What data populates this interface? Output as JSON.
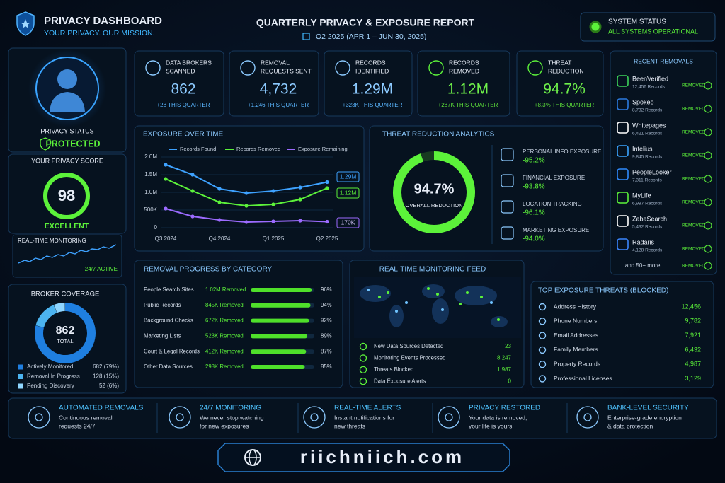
{
  "header": {
    "title": "PRIVACY DASHBOARD",
    "tagline": "YOUR PRIVACY. OUR MISSION.",
    "report_title": "QUARTERLY PRIVACY & EXPOSURE REPORT",
    "period": "Q2 2025 (APR 1 – JUN 30, 2025)"
  },
  "system_status": {
    "label": "SYSTEM STATUS",
    "status": "ALL SYSTEMS OPERATIONAL"
  },
  "profile": {
    "label": "PRIVACY STATUS",
    "status": "PROTECTED"
  },
  "privacy_score": {
    "title": "YOUR PRIVACY SCORE",
    "score": 98,
    "rating": "EXCELLENT"
  },
  "monitoring": {
    "title": "REAL-TIME MONITORING",
    "status": "24/7 ACTIVE"
  },
  "broker_coverage": {
    "type": "pie",
    "title": "BROKER COVERAGE",
    "total": 862,
    "total_label": "TOTAL",
    "categories": [
      "Actively Monitored",
      "Removal In Progress",
      "Pending Discovery"
    ],
    "values": [
      682,
      128,
      52
    ],
    "value_labels": [
      "682 (79%)",
      "128 (15%)",
      "52 (6%)"
    ],
    "colors": [
      "#1f7fe0",
      "#4cb4f0",
      "#8fd6ff"
    ]
  },
  "stats": [
    {
      "label": [
        "DATA BROKERS",
        "SCANNED"
      ],
      "value": "862",
      "change": "+28 THIS QUARTER"
    },
    {
      "label": [
        "REMOVAL",
        "REQUESTS SENT"
      ],
      "value": "4,732",
      "change": "+1,246 THIS QUARTER"
    },
    {
      "label": [
        "RECORDS",
        "IDENTIFIED"
      ],
      "value": "1.29M",
      "change": "+323K THIS QUARTER"
    },
    {
      "label": [
        "RECORDS",
        "REMOVED"
      ],
      "value": "1.12M",
      "change": "+287K THIS QUARTER"
    },
    {
      "label": [
        "THREAT",
        "REDUCTION"
      ],
      "value": "94.7%",
      "change": "+8.3% THIS QUARTER"
    }
  ],
  "exposure_chart": {
    "type": "line",
    "title": "EXPOSURE OVER TIME",
    "categories": [
      "Q3 2024",
      null,
      "Q4 2024",
      null,
      "Q1 2025",
      null,
      "Q2 2025"
    ],
    "series": [
      {
        "name": "Records Found",
        "color": "#3ea2ff",
        "values": [
          1780000,
          1500000,
          1100000,
          980000,
          1040000,
          1140000,
          1290000
        ],
        "value_labels": [
          null,
          null,
          null,
          null,
          null,
          null,
          "1.29M"
        ]
      },
      {
        "name": "Records Removed",
        "color": "#5cf23a",
        "values": [
          1380000,
          1040000,
          720000,
          620000,
          660000,
          800000,
          1120000
        ],
        "value_labels": [
          null,
          null,
          null,
          null,
          null,
          null,
          "1.12M"
        ]
      },
      {
        "name": "Exposure Remaining",
        "color": "#9c6bff",
        "values": [
          540000,
          320000,
          220000,
          160000,
          180000,
          200000,
          170000
        ],
        "value_labels": [
          null,
          null,
          null,
          null,
          null,
          null,
          "170K"
        ]
      }
    ],
    "ylim": [
      0,
      2000000
    ],
    "yticks": [
      0,
      {
        "value": 500000,
        "label": "500K"
      },
      {
        "value": 1000000,
        "label": "1.0M"
      },
      {
        "value": 1500000,
        "label": "1.5M"
      },
      {
        "value": 2000000,
        "label": "2.0M"
      }
    ],
    "grid": true
  },
  "threat_reduction": {
    "type": "pie",
    "title": "THREAT REDUCTION ANALYTICS",
    "values": [
      94.7
    ],
    "value_labels": [
      "94.7%"
    ],
    "caption": "OVERALL REDUCTION",
    "color": "#5cf23a",
    "items": [
      {
        "label": "PERSONAL INFO EXPOSURE",
        "value": "-95.2%"
      },
      {
        "label": "FINANCIAL EXPOSURE",
        "value": "-93.8%"
      },
      {
        "label": "LOCATION TRACKING",
        "value": "-96.1%"
      },
      {
        "label": "MARKETING EXPOSURE",
        "value": "-94.0%"
      }
    ]
  },
  "recent_removals": {
    "title": "RECENT REMOVALS",
    "items": [
      {
        "name": "BeenVerified",
        "records": "12,456 Records",
        "status": "REMOVED"
      },
      {
        "name": "Spokeo",
        "records": "8,732 Records",
        "status": "REMOVED"
      },
      {
        "name": "Whitepages",
        "records": "6,421 Records",
        "status": "REMOVED"
      },
      {
        "name": "Intelius",
        "records": "9,845 Records",
        "status": "REMOVED"
      },
      {
        "name": "PeopleLooker",
        "records": "7,311 Records",
        "status": "REMOVED"
      },
      {
        "name": "MyLife",
        "records": "6,987 Records",
        "status": "REMOVED"
      },
      {
        "name": "ZabaSearch",
        "records": "5,432 Records",
        "status": "REMOVED"
      },
      {
        "name": "Radaris",
        "records": "4,128 Records",
        "status": "REMOVED"
      }
    ],
    "more": "... and 50+ more",
    "more_status": "REMOVED"
  },
  "removal_progress": {
    "type": "bar",
    "title": "REMOVAL PROGRESS BY CATEGORY",
    "categories": [
      "People Search Sites",
      "Public Records",
      "Background Checks",
      "Marketing Lists",
      "Court & Legal Records",
      "Other Data Sources"
    ],
    "amounts": [
      "1.02M Removed",
      "845K Removed",
      "672K Removed",
      "523K Removed",
      "412K Removed",
      "298K Removed"
    ],
    "values": [
      96,
      94,
      92,
      89,
      87,
      85
    ],
    "value_labels": [
      "96%",
      "94%",
      "92%",
      "89%",
      "87%",
      "85%"
    ],
    "color": "#4fe02a"
  },
  "monitoring_feed": {
    "title": "REAL-TIME MONITORING FEED",
    "rows": [
      {
        "label": "New Data Sources Detected",
        "value": "23"
      },
      {
        "label": "Monitoring Events Processed",
        "value": "8,247"
      },
      {
        "label": "Threats Blocked",
        "value": "1,987"
      },
      {
        "label": "Data Exposure Alerts",
        "value": "0"
      }
    ]
  },
  "top_threats": {
    "title": "TOP EXPOSURE THREATS (BLOCKED)",
    "rows": [
      {
        "label": "Address History",
        "value": "12,456"
      },
      {
        "label": "Phone Numbers",
        "value": "9,782"
      },
      {
        "label": "Email Addresses",
        "value": "7,921"
      },
      {
        "label": "Family Members",
        "value": "6,432"
      },
      {
        "label": "Property Records",
        "value": "4,987"
      },
      {
        "label": "Professional Licenses",
        "value": "3,129"
      }
    ]
  },
  "features": [
    {
      "title": "AUTOMATED REMOVALS",
      "lines": [
        "Continuous removal",
        "requests 24/7"
      ]
    },
    {
      "title": "24/7 MONITORING",
      "lines": [
        "We never stop watching",
        "for new exposures"
      ]
    },
    {
      "title": "REAL-TIME ALERTS",
      "lines": [
        "Instant notifications for",
        "new threats"
      ]
    },
    {
      "title": "PRIVACY RESTORED",
      "lines": [
        "Your data is removed,",
        "your life is yours"
      ]
    },
    {
      "title": "BANK-LEVEL SECURITY",
      "lines": [
        "Enterprise-grade encryption",
        "& data protection"
      ]
    }
  ],
  "banner": "riichniich.com"
}
